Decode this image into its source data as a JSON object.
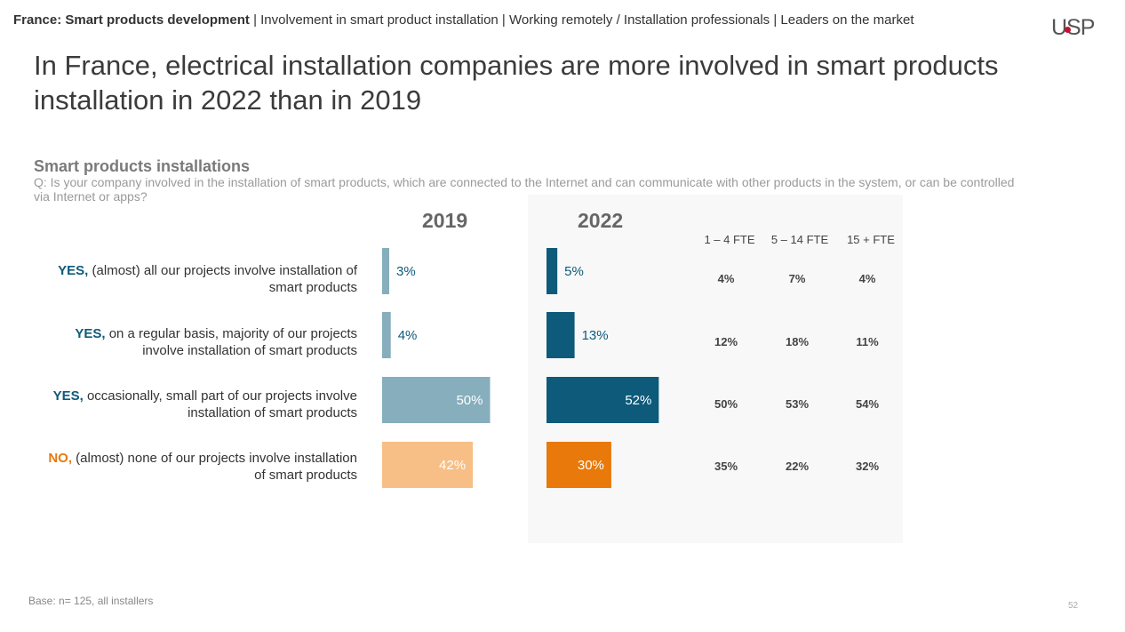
{
  "header": {
    "breadcrumb_bold": "France: Smart products development",
    "breadcrumb_rest": " | Involvement in smart product installation | Working remotely / Installation professionals  | Leaders on the market",
    "logo_text": "USP"
  },
  "title": "In France, electrical installation companies are more involved in smart products installation in 2022 than in 2019",
  "section": {
    "subtitle": "Smart products installations",
    "question": "Q: Is your company involved in the installation of smart products, which are connected to the Internet and can communicate with other products in the system, or can be controlled via Internet or apps?"
  },
  "rows": [
    {
      "lead": "YES,",
      "text": " (almost) all our projects involve installation of smart products",
      "lead_color": "#0d5a7a"
    },
    {
      "lead": "YES,",
      "text": " on a regular basis, majority of our projects involve installation of smart products",
      "lead_color": "#0d5a7a"
    },
    {
      "lead": "YES,",
      "text": " occasionally, small part of our projects involve installation of smart products",
      "lead_color": "#0d5a7a"
    },
    {
      "lead": "NO,",
      "text": " (almost) none of our projects involve installation of smart products",
      "lead_color": "#e8790a"
    }
  ],
  "size_table": {
    "headers": [
      "1 – 4 FTE",
      "5 – 14 FTE",
      "15 + FTE"
    ],
    "values": [
      [
        "4%",
        "7%",
        "4%"
      ],
      [
        "12%",
        "18%",
        "11%"
      ],
      [
        "50%",
        "53%",
        "54%"
      ],
      [
        "35%",
        "22%",
        "32%"
      ]
    ]
  },
  "colors": {
    "yes_2019": "#86aebd",
    "no_2019": "#f7bf85",
    "yes_2022": "#0d5a7a",
    "no_2022": "#e8790a"
  },
  "chart_data": {
    "type": "bar",
    "orientation": "horizontal",
    "categories": [
      "YES, (almost) all our projects involve installation of smart products",
      "YES, on a regular basis, majority of our projects involve installation of smart products",
      "YES, occasionally, small part of our projects involve installation of smart products",
      "NO, (almost) none of our projects involve installation of smart products"
    ],
    "series": [
      {
        "name": "2019",
        "values": [
          3,
          4,
          50,
          42
        ],
        "labels": [
          "3%",
          "4%",
          "50%",
          "42%"
        ]
      },
      {
        "name": "2022",
        "values": [
          5,
          13,
          52,
          30
        ],
        "labels": [
          "5%",
          "13%",
          "52%",
          "30%"
        ]
      }
    ],
    "title": "",
    "xlabel": "",
    "ylabel": "",
    "grid": false
  },
  "footer": {
    "base": "Base: n= 125, all installers",
    "page": "52"
  }
}
